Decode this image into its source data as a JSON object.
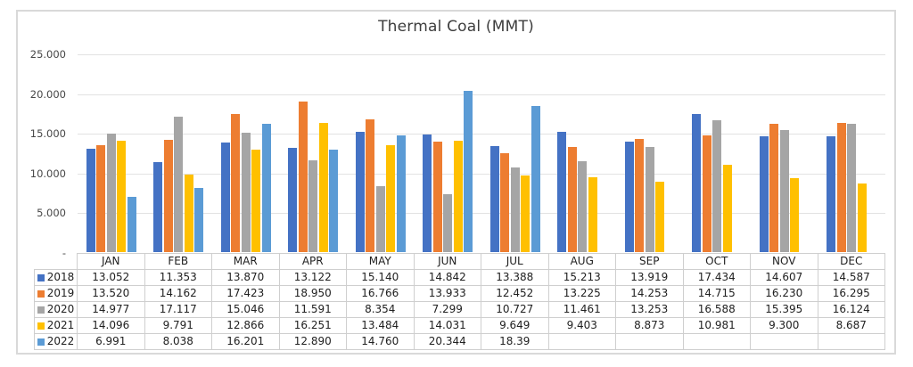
{
  "chart_data": {
    "type": "bar",
    "title": "Thermal Coal (MMT)",
    "categories": [
      "JAN",
      "FEB",
      "MAR",
      "APR",
      "MAY",
      "JUN",
      "JUL",
      "AUG",
      "SEP",
      "OCT",
      "NOV",
      "DEC"
    ],
    "series": [
      {
        "name": "2018",
        "color": "#4472C4",
        "values": [
          13.052,
          11.353,
          13.87,
          13.122,
          15.14,
          14.842,
          13.388,
          15.213,
          13.919,
          17.434,
          14.607,
          14.587
        ],
        "labels": [
          "13.052",
          "11.353",
          "13.870",
          "13.122",
          "15.140",
          "14.842",
          "13.388",
          "15.213",
          "13.919",
          "17.434",
          "14.607",
          "14.587"
        ]
      },
      {
        "name": "2019",
        "color": "#ED7D31",
        "values": [
          13.52,
          14.162,
          17.423,
          18.95,
          16.766,
          13.933,
          12.452,
          13.225,
          14.253,
          14.715,
          16.23,
          16.295
        ],
        "labels": [
          "13.520",
          "14.162",
          "17.423",
          "18.950",
          "16.766",
          "13.933",
          "12.452",
          "13.225",
          "14.253",
          "14.715",
          "16.230",
          "16.295"
        ]
      },
      {
        "name": "2020",
        "color": "#A5A5A5",
        "values": [
          14.977,
          17.117,
          15.046,
          11.591,
          8.354,
          7.299,
          10.727,
          11.461,
          13.253,
          16.588,
          15.395,
          16.124
        ],
        "labels": [
          "14.977",
          "17.117",
          "15.046",
          "11.591",
          "8.354",
          "7.299",
          "10.727",
          "11.461",
          "13.253",
          "16.588",
          "15.395",
          "16.124"
        ]
      },
      {
        "name": "2021",
        "color": "#FFC000",
        "values": [
          14.096,
          9.791,
          12.866,
          16.251,
          13.484,
          14.031,
          9.649,
          9.403,
          8.873,
          10.981,
          9.3,
          8.687
        ],
        "labels": [
          "14.096",
          "9.791",
          "12.866",
          "16.251",
          "13.484",
          "14.031",
          "9.649",
          "9.403",
          "8.873",
          "10.981",
          "9.300",
          "8.687"
        ]
      },
      {
        "name": "2022",
        "color": "#5B9BD5",
        "values": [
          6.991,
          8.038,
          16.201,
          12.89,
          14.76,
          20.344,
          18.39,
          null,
          null,
          null,
          null,
          null
        ],
        "labels": [
          "6.991",
          "8.038",
          "16.201",
          "12.890",
          "14.760",
          "20.344",
          "18.39",
          "",
          "",
          "",
          "",
          ""
        ]
      }
    ],
    "ylim": [
      0,
      25
    ],
    "yticks": [
      {
        "value": 25,
        "label": "25.000"
      },
      {
        "value": 20,
        "label": "20.000"
      },
      {
        "value": 15,
        "label": "15.000"
      },
      {
        "value": 10,
        "label": "10.000"
      },
      {
        "value": 5,
        "label": "5.000"
      },
      {
        "value": 0,
        "label": "-"
      }
    ],
    "grid": true,
    "legend_position": "table-left-column"
  },
  "colors": {
    "frame_border": "#d9d9d9",
    "gridline": "#e2e2e2",
    "table_border": "#cfcfcf",
    "text": "#212121"
  }
}
